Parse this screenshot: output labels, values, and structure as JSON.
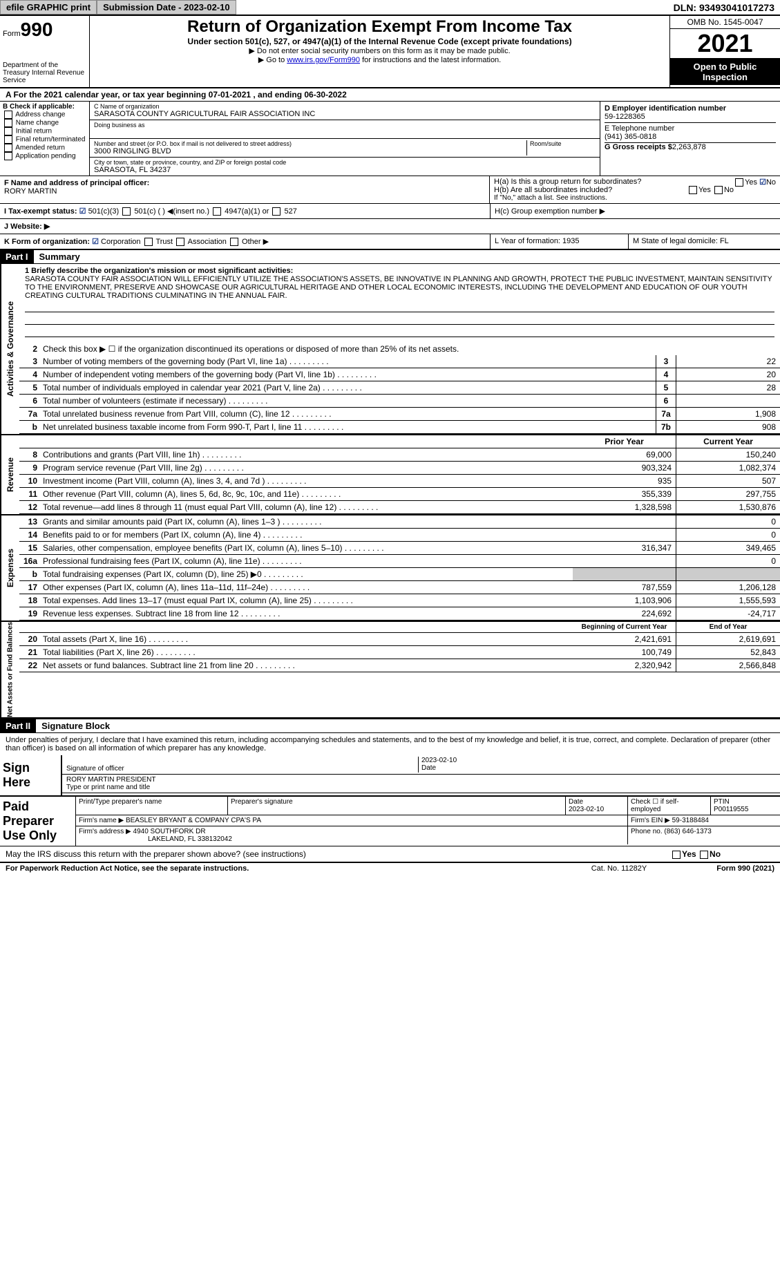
{
  "topbar": {
    "efile": "efile GRAPHIC print",
    "submission": "Submission Date - 2023-02-10",
    "dln": "DLN: 93493041017273"
  },
  "header": {
    "form": "Form",
    "form_num": "990",
    "dept": "Department of the Treasury Internal Revenue Service",
    "title": "Return of Organization Exempt From Income Tax",
    "sub": "Under section 501(c), 527, or 4947(a)(1) of the Internal Revenue Code (except private foundations)",
    "note1": "▶ Do not enter social security numbers on this form as it may be made public.",
    "note2_pre": "▶ Go to ",
    "note2_link": "www.irs.gov/Form990",
    "note2_post": " for instructions and the latest information.",
    "omb": "OMB No. 1545-0047",
    "year": "2021",
    "open": "Open to Public Inspection"
  },
  "period": {
    "text": "A For the 2021 calendar year, or tax year beginning 07-01-2021   , and ending 06-30-2022"
  },
  "section_b": {
    "title": "B Check if applicable:",
    "opts": [
      "Address change",
      "Name change",
      "Initial return",
      "Final return/terminated",
      "Amended return",
      "Application pending"
    ]
  },
  "section_c": {
    "name_label": "C Name of organization",
    "name": "SARASOTA COUNTY AGRICULTURAL FAIR ASSOCIATION INC",
    "dba_label": "Doing business as",
    "dba": "",
    "addr_label": "Number and street (or P.O. box if mail is not delivered to street address)",
    "addr": "3000 RINGLING BLVD",
    "room_label": "Room/suite",
    "city_label": "City or town, state or province, country, and ZIP or foreign postal code",
    "city": "SARASOTA, FL  34237"
  },
  "section_d": {
    "ein_label": "D Employer identification number",
    "ein": "59-1228365",
    "phone_label": "E Telephone number",
    "phone": "(941) 365-0818",
    "gross_label": "G Gross receipts $",
    "gross": "2,263,878"
  },
  "section_f": {
    "label": "F Name and address of principal officer:",
    "name": "RORY MARTIN"
  },
  "section_h": {
    "ha": "H(a)  Is this a group return for subordinates?",
    "hb": "H(b)  Are all subordinates included?",
    "hb_note": "If \"No,\" attach a list. See instructions.",
    "hc": "H(c)  Group exemption number ▶"
  },
  "status": {
    "label": "I   Tax-exempt status:",
    "opts": [
      "501(c)(3)",
      "501(c) (  ) ◀(insert no.)",
      "4947(a)(1) or",
      "527"
    ]
  },
  "website": {
    "label": "J   Website: ▶"
  },
  "k": {
    "label": "K Form of organization:",
    "opts": [
      "Corporation",
      "Trust",
      "Association",
      "Other ▶"
    ],
    "l": "L Year of formation: 1935",
    "m": "M State of legal domicile: FL"
  },
  "part1": {
    "num": "Part I",
    "title": "Summary"
  },
  "mission": {
    "label": "1  Briefly describe the organization's mission or most significant activities:",
    "text": "SARASOTA COUNTY FAIR ASSOCIATION WILL EFFICIENTLY UTILIZE THE ASSOCIATION'S ASSETS, BE INNOVATIVE IN PLANNING AND GROWTH, PROTECT THE PUBLIC INVESTMENT, MAINTAIN SENSITIVITY TO THE ENVIRONMENT, PRESERVE AND SHOWCASE OUR AGRICULTURAL HERITAGE AND OTHER LOCAL ECONOMIC INTERESTS, INCLUDING THE DEVELOPMENT AND EDUCATION OF OUR YOUTH CREATING CULTURAL TRADITIONS CULMINATING IN THE ANNUAL FAIR."
  },
  "governance": {
    "line2": "Check this box ▶ ☐  if the organization discontinued its operations or disposed of more than 25% of its net assets.",
    "rows": [
      {
        "n": "3",
        "t": "Number of voting members of the governing body (Part VI, line 1a)",
        "l": "3",
        "v": "22"
      },
      {
        "n": "4",
        "t": "Number of independent voting members of the governing body (Part VI, line 1b)",
        "l": "4",
        "v": "20"
      },
      {
        "n": "5",
        "t": "Total number of individuals employed in calendar year 2021 (Part V, line 2a)",
        "l": "5",
        "v": "28"
      },
      {
        "n": "6",
        "t": "Total number of volunteers (estimate if necessary)",
        "l": "6",
        "v": ""
      },
      {
        "n": "7a",
        "t": "Total unrelated business revenue from Part VIII, column (C), line 12",
        "l": "7a",
        "v": "1,908"
      },
      {
        "n": "b",
        "t": "Net unrelated business taxable income from Form 990-T, Part I, line 11",
        "l": "7b",
        "v": "908"
      }
    ]
  },
  "revenue": {
    "header_prior": "Prior Year",
    "header_current": "Current Year",
    "rows": [
      {
        "n": "8",
        "t": "Contributions and grants (Part VIII, line 1h)",
        "p": "69,000",
        "c": "150,240"
      },
      {
        "n": "9",
        "t": "Program service revenue (Part VIII, line 2g)",
        "p": "903,324",
        "c": "1,082,374"
      },
      {
        "n": "10",
        "t": "Investment income (Part VIII, column (A), lines 3, 4, and 7d )",
        "p": "935",
        "c": "507"
      },
      {
        "n": "11",
        "t": "Other revenue (Part VIII, column (A), lines 5, 6d, 8c, 9c, 10c, and 11e)",
        "p": "355,339",
        "c": "297,755"
      },
      {
        "n": "12",
        "t": "Total revenue—add lines 8 through 11 (must equal Part VIII, column (A), line 12)",
        "p": "1,328,598",
        "c": "1,530,876"
      }
    ]
  },
  "expenses": {
    "rows": [
      {
        "n": "13",
        "t": "Grants and similar amounts paid (Part IX, column (A), lines 1–3 )",
        "p": "",
        "c": "0"
      },
      {
        "n": "14",
        "t": "Benefits paid to or for members (Part IX, column (A), line 4)",
        "p": "",
        "c": "0"
      },
      {
        "n": "15",
        "t": "Salaries, other compensation, employee benefits (Part IX, column (A), lines 5–10)",
        "p": "316,347",
        "c": "349,465"
      },
      {
        "n": "16a",
        "t": "Professional fundraising fees (Part IX, column (A), line 11e)",
        "p": "",
        "c": "0"
      },
      {
        "n": "b",
        "t": "Total fundraising expenses (Part IX, column (D), line 25) ▶0",
        "p": "gray",
        "c": "gray"
      },
      {
        "n": "17",
        "t": "Other expenses (Part IX, column (A), lines 11a–11d, 11f–24e)",
        "p": "787,559",
        "c": "1,206,128"
      },
      {
        "n": "18",
        "t": "Total expenses. Add lines 13–17 (must equal Part IX, column (A), line 25)",
        "p": "1,103,906",
        "c": "1,555,593"
      },
      {
        "n": "19",
        "t": "Revenue less expenses. Subtract line 18 from line 12",
        "p": "224,692",
        "c": "-24,717"
      }
    ]
  },
  "netassets": {
    "header_begin": "Beginning of Current Year",
    "header_end": "End of Year",
    "rows": [
      {
        "n": "20",
        "t": "Total assets (Part X, line 16)",
        "p": "2,421,691",
        "c": "2,619,691"
      },
      {
        "n": "21",
        "t": "Total liabilities (Part X, line 26)",
        "p": "100,749",
        "c": "52,843"
      },
      {
        "n": "22",
        "t": "Net assets or fund balances. Subtract line 21 from line 20",
        "p": "2,320,942",
        "c": "2,566,848"
      }
    ]
  },
  "part2": {
    "num": "Part II",
    "title": "Signature Block"
  },
  "sig": {
    "declaration": "Under penalties of perjury, I declare that I have examined this return, including accompanying schedules and statements, and to the best of my knowledge and belief, it is true, correct, and complete. Declaration of preparer (other than officer) is based on all information of which preparer has any knowledge.",
    "sign_here": "Sign Here",
    "sig_officer": "Signature of officer",
    "date": "2023-02-10",
    "date_label": "Date",
    "name": "RORY MARTIN  PRESIDENT",
    "name_label": "Type or print name and title"
  },
  "preparer": {
    "label": "Paid Preparer Use Only",
    "h1": "Print/Type preparer's name",
    "h2": "Preparer's signature",
    "h3": "Date",
    "date": "2023-02-10",
    "h4": "Check ☐ if self-employed",
    "h5": "PTIN",
    "ptin": "P00119555",
    "firm_label": "Firm's name      ▶",
    "firm": "BEASLEY BRYANT & COMPANY CPA'S PA",
    "ein_label": "Firm's EIN ▶",
    "ein": "59-3188484",
    "addr_label": "Firm's address  ▶",
    "addr1": "4940 SOUTHFORK DR",
    "addr2": "LAKELAND, FL  338132042",
    "phone_label": "Phone no.",
    "phone": "(863) 646-1373"
  },
  "discuss": "May the IRS discuss this return with the preparer shown above? (see instructions)",
  "footer": {
    "left": "For Paperwork Reduction Act Notice, see the separate instructions.",
    "mid": "Cat. No. 11282Y",
    "right": "Form 990 (2021)"
  }
}
